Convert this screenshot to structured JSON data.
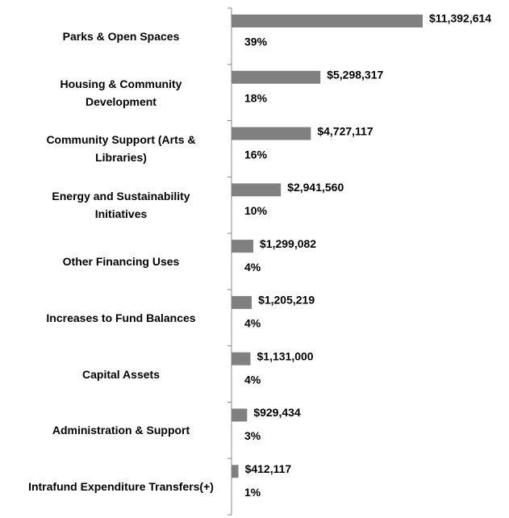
{
  "chart_data": {
    "type": "bar",
    "orientation": "horizontal",
    "categories": [
      "Parks & Open Spaces",
      "Housing & Community Development",
      "Community Support (Arts & Libraries)",
      "Energy and Sustainability Initiatives",
      "Other Financing Uses",
      "Increases to Fund Balances",
      "Capital Assets",
      "Administration & Support",
      "Intrafund Expenditure Transfers(+)"
    ],
    "values": [
      11392614,
      5298317,
      4727117,
      2941560,
      1299082,
      1205219,
      1131000,
      929434,
      412117
    ],
    "value_labels": [
      "$11,392,614",
      "$5,298,317",
      "$4,727,117",
      "$2,941,560",
      "$1,299,082",
      "$1,205,219",
      "$1,131,000",
      "$929,434",
      "$412,117"
    ],
    "shares": [
      39,
      18,
      16,
      10,
      4,
      4,
      4,
      3,
      1
    ],
    "share_labels": [
      "39%",
      "18%",
      "16%",
      "10%",
      "4%",
      "4%",
      "4%",
      "3%",
      "1%"
    ],
    "color": "#808080"
  }
}
